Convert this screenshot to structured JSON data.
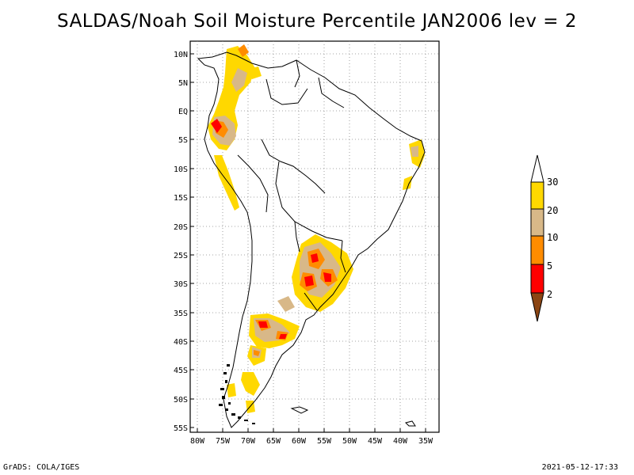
{
  "title": "SALDAS/Noah Soil Moisture Percentile JAN2006 lev = 2",
  "footer": {
    "left": "GrADS: COLA/IGES",
    "right": "2021-05-12-17:33"
  },
  "map": {
    "lat_labels": [
      "10N",
      "5N",
      "EQ",
      "5S",
      "10S",
      "15S",
      "20S",
      "25S",
      "30S",
      "35S",
      "40S",
      "45S",
      "50S",
      "55S"
    ],
    "lon_labels": [
      "80W",
      "75W",
      "70W",
      "65W",
      "60W",
      "55W",
      "50W",
      "45W",
      "40W",
      "35W"
    ],
    "grid": true
  },
  "colorbar": {
    "labels": [
      "30",
      "20",
      "10",
      "5",
      "2"
    ],
    "colors": {
      "c30": "#ffffff",
      "c20_30": "#ffd800",
      "c10_20": "#d8b888",
      "c5_10": "#ff8c00",
      "c2_5": "#ff0000",
      "c0_2": "#8b4513"
    }
  }
}
